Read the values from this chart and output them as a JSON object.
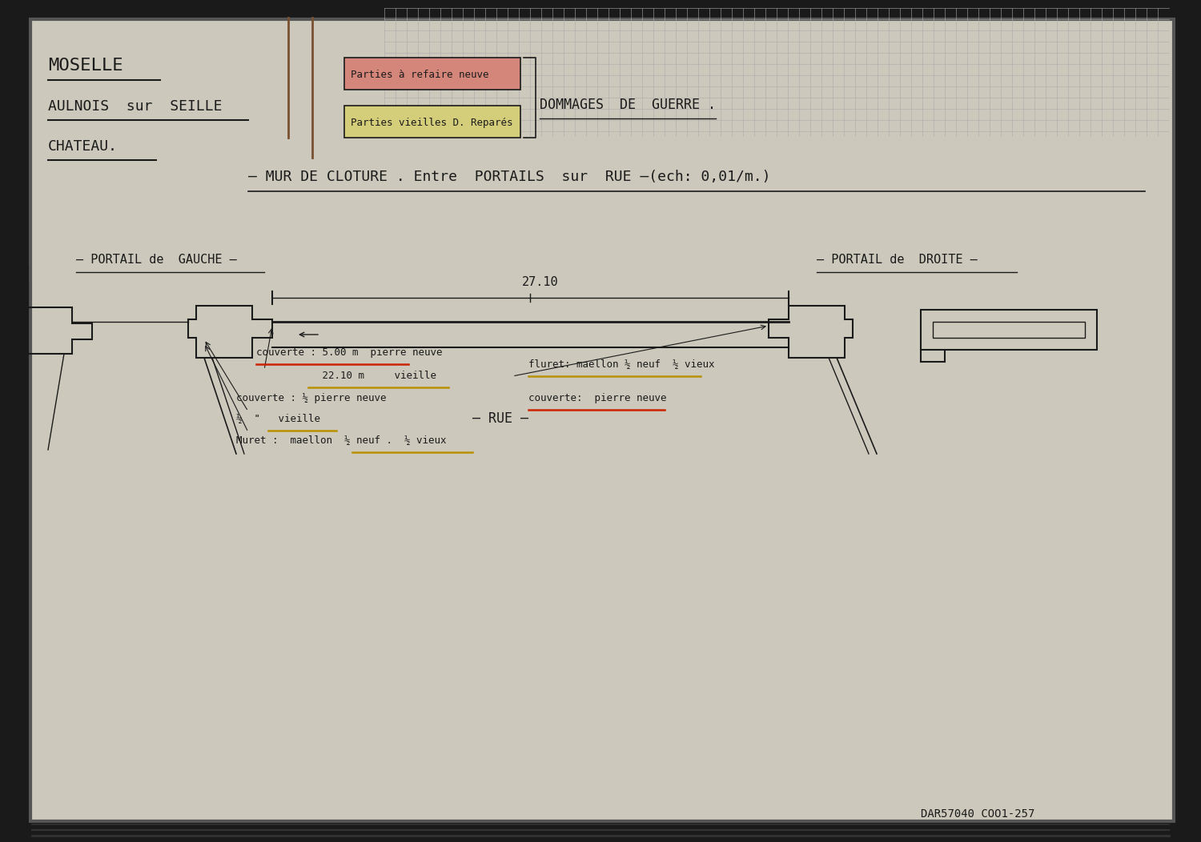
{
  "bg_outer": "#1a1a1a",
  "bg_paper": "#ccc9bc",
  "title_moselle": "MOSELLE",
  "title_aulnois": "AULNOIS  sur  SEILLE",
  "title_chateau": "CHATEAU.",
  "legend_box1_text": "Parties à refaire neuve",
  "legend_box2_text": "Parties vieilles D. Reparés",
  "legend_text": "DOMMAGES  DE  GUERRE .",
  "main_title": "— MUR DE CLOTURE . Entre  PORTAILS  sur  RUE —(ech: 0,01/m.)",
  "label_left": "— PORTAIL de  GAUCHE —",
  "label_right": "— PORTAIL de  DROITE —",
  "dim_label": "27.10",
  "ann1": "couverte : 5.00 m  pierre neuve",
  "ann2": "           22.10 m     vieille",
  "ann3": "couverte : ½ pierre neuve",
  "ann4": "½  \"   vieille",
  "ann5": "Muret :  maellon  ½ neuf .  ½ vieux",
  "ann6": "fluret: maellon ½ neuf  ½ vieux",
  "ann7": "couverte:  pierre neuve",
  "rue_label": "— RUE —",
  "ref_text": "DAR57040 COO1-257",
  "ink": "#1a1a1a",
  "red": "#cc2200",
  "yellow": "#b89000",
  "box1_fill": "#d4867a",
  "box2_fill": "#d4cd7a",
  "grid_color": "#aaaaaa"
}
